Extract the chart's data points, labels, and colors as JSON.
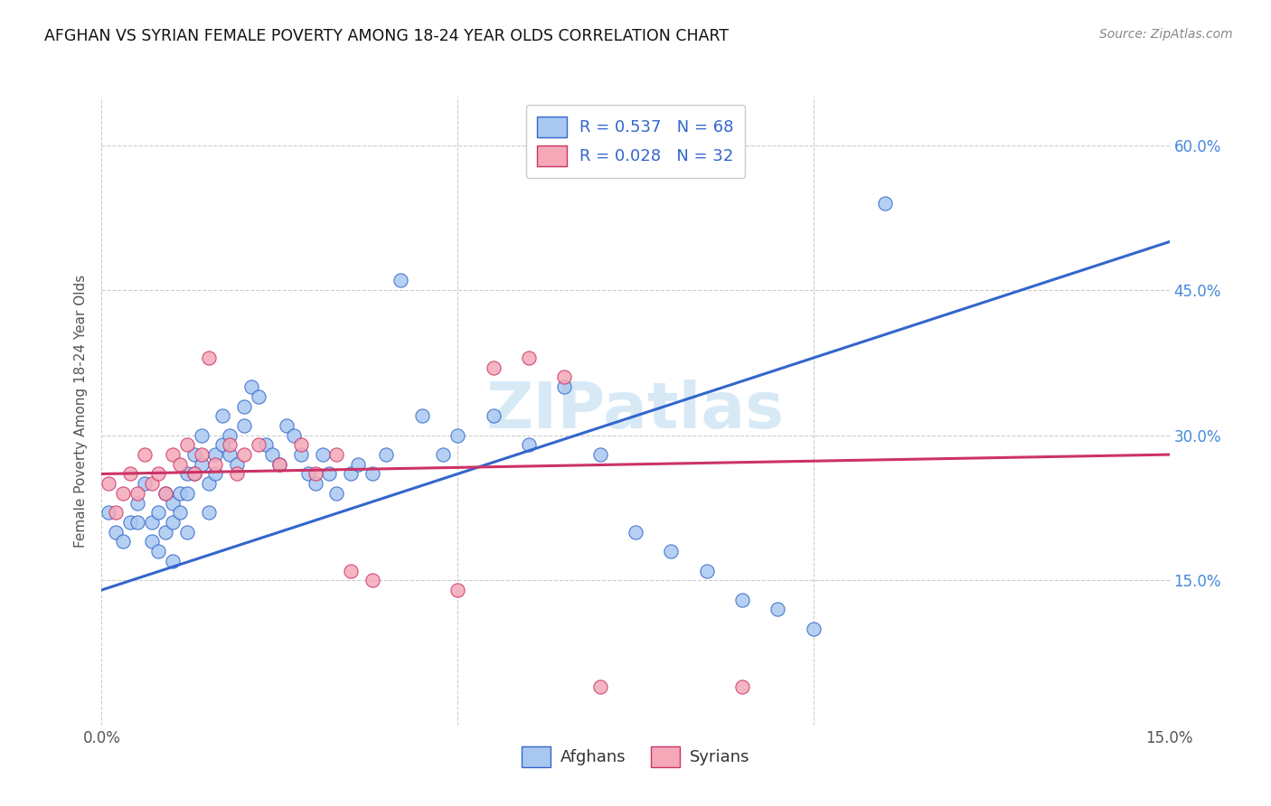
{
  "title": "AFGHAN VS SYRIAN FEMALE POVERTY AMONG 18-24 YEAR OLDS CORRELATION CHART",
  "source": "Source: ZipAtlas.com",
  "ylabel": "Female Poverty Among 18-24 Year Olds",
  "x_min": 0.0,
  "x_max": 0.15,
  "y_min": 0.0,
  "y_max": 0.65,
  "y_ticks": [
    0.15,
    0.3,
    0.45,
    0.6
  ],
  "y_tick_labels": [
    "15.0%",
    "30.0%",
    "45.0%",
    "60.0%"
  ],
  "x_ticks": [
    0.0,
    0.15
  ],
  "x_tick_labels": [
    "0.0%",
    "15.0%"
  ],
  "legend_afghan_label": "R = 0.537   N = 68",
  "legend_syrian_label": "R = 0.028   N = 32",
  "legend_bottom_afghan": "Afghans",
  "legend_bottom_syrian": "Syrians",
  "afghan_color": "#a8c8f0",
  "syrian_color": "#f4a8b8",
  "afghan_line_color": "#3366cc",
  "syrian_line_color": "#cc3366",
  "watermark": "ZIPatlas",
  "background_color": "#ffffff",
  "grid_color": "#cccccc",
  "afghan_scatter_x": [
    0.001,
    0.002,
    0.003,
    0.004,
    0.005,
    0.005,
    0.006,
    0.007,
    0.007,
    0.008,
    0.008,
    0.009,
    0.009,
    0.01,
    0.01,
    0.01,
    0.011,
    0.011,
    0.012,
    0.012,
    0.012,
    0.013,
    0.013,
    0.014,
    0.014,
    0.015,
    0.015,
    0.016,
    0.016,
    0.017,
    0.017,
    0.018,
    0.018,
    0.019,
    0.02,
    0.02,
    0.021,
    0.022,
    0.023,
    0.024,
    0.025,
    0.026,
    0.027,
    0.028,
    0.029,
    0.03,
    0.031,
    0.032,
    0.033,
    0.035,
    0.036,
    0.038,
    0.04,
    0.042,
    0.045,
    0.048,
    0.05,
    0.055,
    0.06,
    0.065,
    0.07,
    0.075,
    0.08,
    0.085,
    0.09,
    0.095,
    0.1,
    0.11
  ],
  "afghan_scatter_y": [
    0.22,
    0.2,
    0.19,
    0.21,
    0.23,
    0.21,
    0.25,
    0.19,
    0.21,
    0.18,
    0.22,
    0.2,
    0.24,
    0.21,
    0.23,
    0.17,
    0.22,
    0.24,
    0.2,
    0.26,
    0.24,
    0.26,
    0.28,
    0.3,
    0.27,
    0.22,
    0.25,
    0.28,
    0.26,
    0.32,
    0.29,
    0.28,
    0.3,
    0.27,
    0.33,
    0.31,
    0.35,
    0.34,
    0.29,
    0.28,
    0.27,
    0.31,
    0.3,
    0.28,
    0.26,
    0.25,
    0.28,
    0.26,
    0.24,
    0.26,
    0.27,
    0.26,
    0.28,
    0.46,
    0.32,
    0.28,
    0.3,
    0.32,
    0.29,
    0.35,
    0.28,
    0.2,
    0.18,
    0.16,
    0.13,
    0.12,
    0.1,
    0.54
  ],
  "syrian_scatter_x": [
    0.001,
    0.002,
    0.003,
    0.004,
    0.005,
    0.006,
    0.007,
    0.008,
    0.009,
    0.01,
    0.011,
    0.012,
    0.013,
    0.014,
    0.015,
    0.016,
    0.018,
    0.019,
    0.02,
    0.022,
    0.025,
    0.028,
    0.03,
    0.033,
    0.035,
    0.038,
    0.05,
    0.055,
    0.06,
    0.065,
    0.07,
    0.09
  ],
  "syrian_scatter_y": [
    0.25,
    0.22,
    0.24,
    0.26,
    0.24,
    0.28,
    0.25,
    0.26,
    0.24,
    0.28,
    0.27,
    0.29,
    0.26,
    0.28,
    0.38,
    0.27,
    0.29,
    0.26,
    0.28,
    0.29,
    0.27,
    0.29,
    0.26,
    0.28,
    0.16,
    0.15,
    0.14,
    0.37,
    0.38,
    0.36,
    0.04,
    0.04
  ],
  "afghan_trendline_x": [
    0.0,
    0.15
  ],
  "afghan_trendline_y": [
    0.14,
    0.5
  ],
  "syrian_trendline_x": [
    0.0,
    0.15
  ],
  "syrian_trendline_y": [
    0.26,
    0.28
  ]
}
